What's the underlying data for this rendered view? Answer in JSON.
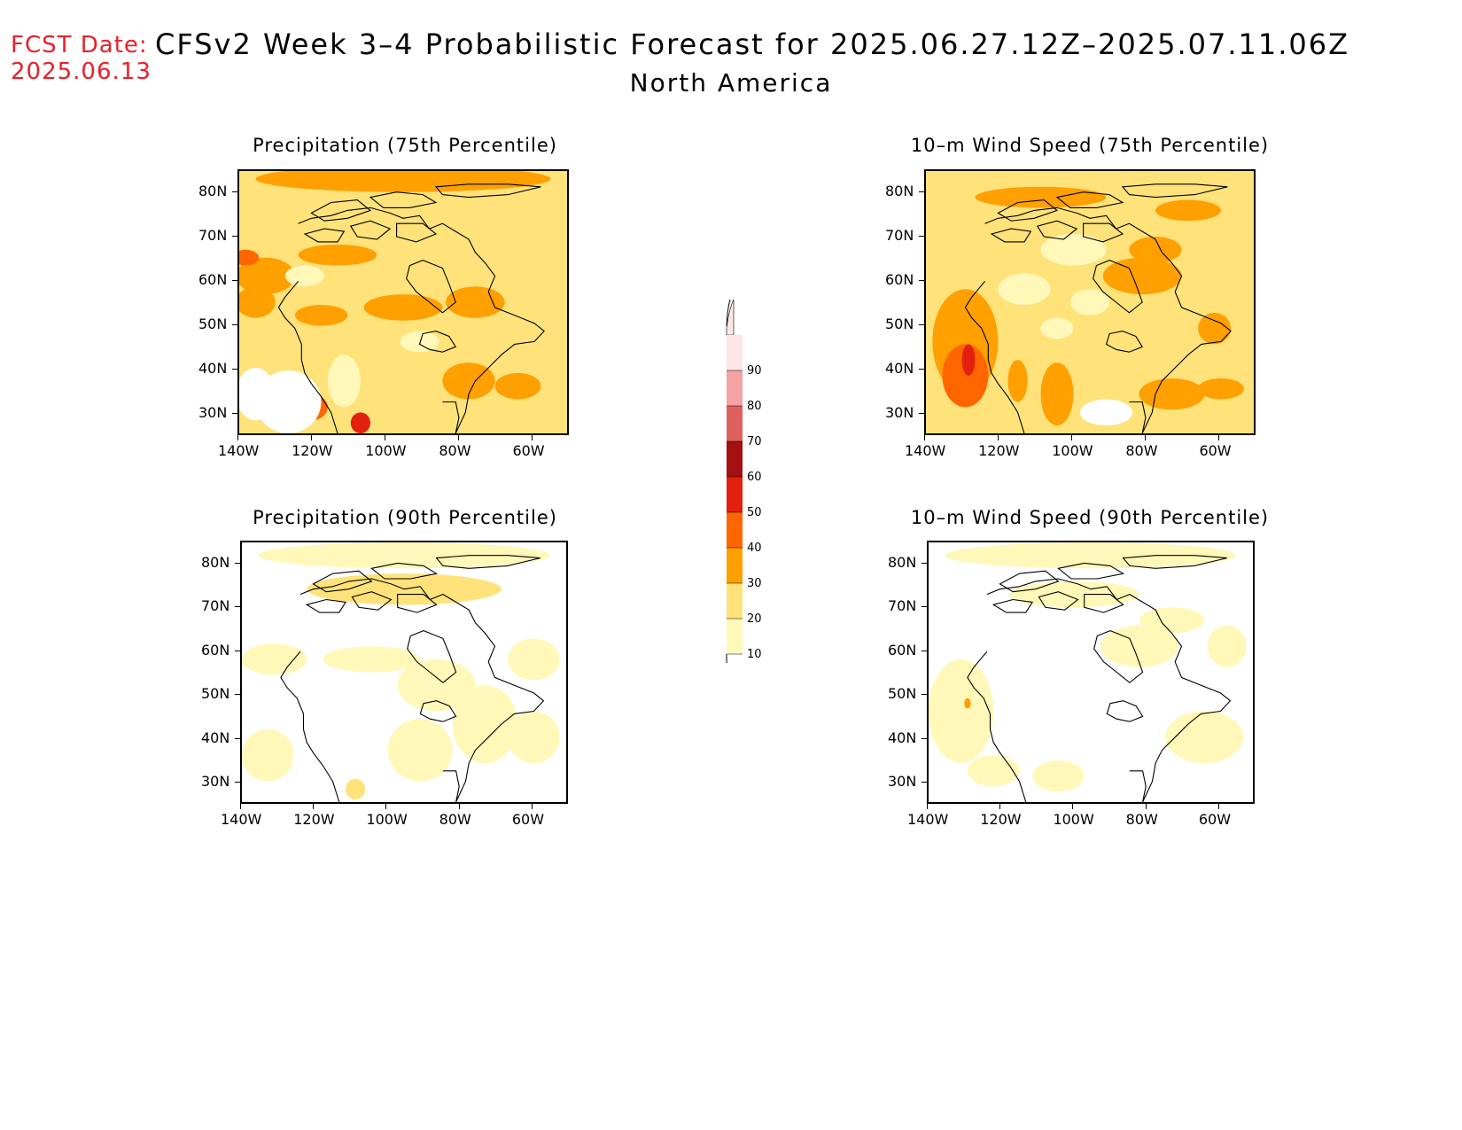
{
  "header": {
    "fcst_label": "FCST Date:",
    "fcst_date": "2025.06.13",
    "title": "CFSv2 Week 3–4 Probabilistic Forecast for 2025.06.27.12Z–2025.07.11.06Z",
    "region": "North America"
  },
  "axes": {
    "lat_ticks": [
      "80N",
      "70N",
      "60N",
      "50N",
      "40N",
      "30N"
    ],
    "lon_ticks": [
      "140W",
      "120W",
      "100W",
      "80W",
      "60W"
    ]
  },
  "panels": [
    {
      "id": "precip75",
      "title": "Precipitation (75th Percentile)"
    },
    {
      "id": "wind75",
      "title": "10–m Wind Speed (75th Percentile)"
    },
    {
      "id": "precip90",
      "title": "Precipitation (90th Percentile)"
    },
    {
      "id": "wind90",
      "title": "10–m Wind Speed (90th Percentile)"
    }
  ],
  "colorbar": {
    "levels": [
      "90",
      "80",
      "70",
      "60",
      "50",
      "40",
      "30",
      "20",
      "10"
    ],
    "colors": [
      "#fde6e6",
      "#f4a3a3",
      "#e06060",
      "#a50f0f",
      "#e3200f",
      "#ff6600",
      "#ffa000",
      "#ffe27a",
      "#fff8b8"
    ]
  },
  "legend_colors": {
    "land_base": "#ffffff",
    "low": "#fff8b8",
    "mid": "#ffe27a",
    "high": "#ffa000",
    "vhigh": "#ff6600",
    "extreme": "#e3200f"
  }
}
